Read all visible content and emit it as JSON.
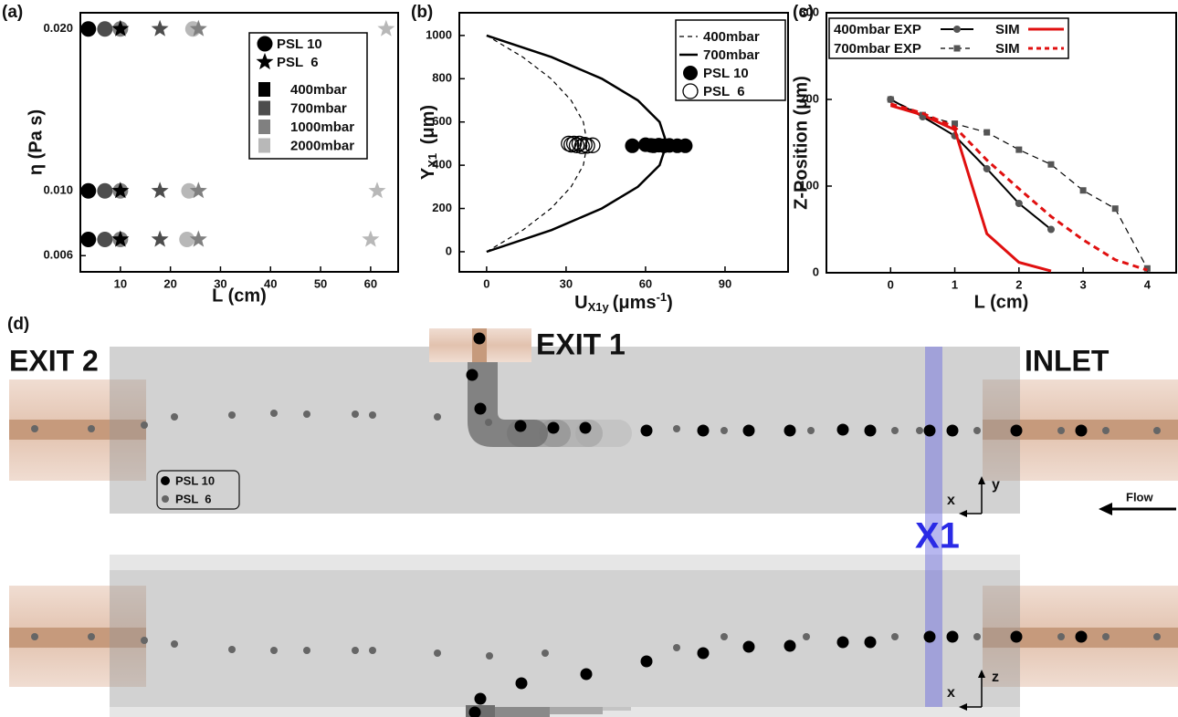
{
  "chart_data": [
    {
      "type": "scatter",
      "panel_label": "(a)",
      "xlabel": "L (cm)",
      "ylabel": "η (Pa s)",
      "xlim": [
        2,
        65.5
      ],
      "xticks": [
        10,
        20,
        30,
        40,
        50,
        60
      ],
      "ylim": [
        0.005,
        0.021
      ],
      "yticks": [
        {
          "value": 0.02,
          "label": "0.020"
        },
        {
          "value": 0.01,
          "label": "0.010"
        },
        0.006
      ],
      "marker_legend": [
        {
          "name": "PSL 10",
          "marker": "circle"
        },
        {
          "name": "PSL  6",
          "marker": "star"
        }
      ],
      "color_legend": [
        {
          "name": "400mbar",
          "color": "#000000"
        },
        {
          "name": "700mbar",
          "color": "#4d4d4d"
        },
        {
          "name": "1000mbar",
          "color": "#808080"
        },
        {
          "name": "2000mbar",
          "color": "#b8b8b8"
        }
      ],
      "series": [
        {
          "marker": "circle",
          "color": "#000000",
          "x": [
            3.6,
            3.6,
            3.6
          ],
          "y": [
            0.02,
            0.01,
            0.007
          ]
        },
        {
          "marker": "circle",
          "color": "#4d4d4d",
          "x": [
            6.9,
            6.9,
            6.9
          ],
          "y": [
            0.02,
            0.01,
            0.007
          ]
        },
        {
          "marker": "circle",
          "color": "#808080",
          "x": [
            10,
            10,
            10
          ],
          "y": [
            0.02,
            0.01,
            0.007
          ]
        },
        {
          "marker": "circle",
          "color": "#b8b8b8",
          "x": [
            24.5,
            23.7,
            23.3
          ],
          "y": [
            0.02,
            0.01,
            0.007
          ]
        },
        {
          "marker": "star",
          "color": "#000000",
          "x": [
            10,
            10,
            10
          ],
          "y": [
            0.02,
            0.01,
            0.007
          ]
        },
        {
          "marker": "star",
          "color": "#4d4d4d",
          "x": [
            17.9,
            17.9,
            17.9
          ],
          "y": [
            0.02,
            0.01,
            0.007
          ]
        },
        {
          "marker": "star",
          "color": "#808080",
          "x": [
            25.6,
            25.6,
            25.6
          ],
          "y": [
            0.02,
            0.01,
            0.007
          ]
        },
        {
          "marker": "star",
          "color": "#b8b8b8",
          "x": [
            63.1,
            61.3,
            60
          ],
          "y": [
            0.02,
            0.01,
            0.007
          ]
        }
      ]
    },
    {
      "type": "line",
      "panel_label": "(b)",
      "xlabel_parts": [
        "U",
        "X1y",
        "(μms",
        "-1",
        ")"
      ],
      "ylabel_parts": [
        "Y",
        "X1",
        " (μm)"
      ],
      "xlim": [
        -10.3,
        113.8
      ],
      "xticks": [
        0,
        30,
        60,
        90
      ],
      "ylim": [
        -93,
        1105
      ],
      "yticks": [
        0,
        200,
        400,
        600,
        800,
        1000
      ],
      "legend_columns": 1,
      "series": [
        {
          "name": "400mbar",
          "style": "dashed",
          "line_width": 1.2,
          "color": "#000000",
          "x": [
            0,
            13.7,
            24.3,
            31.9,
            36.5,
            38,
            36.5,
            31.9,
            24.3,
            13.7,
            0
          ],
          "y": [
            0,
            100,
            200,
            300,
            400,
            500,
            600,
            700,
            800,
            900,
            1000
          ]
        },
        {
          "name": "700mbar",
          "style": "solid",
          "line_width": 2.5,
          "color": "#000000",
          "x": [
            0,
            24.5,
            43.5,
            57.1,
            65.3,
            68,
            65.3,
            57.1,
            43.5,
            24.5,
            0
          ],
          "y": [
            0,
            100,
            200,
            300,
            400,
            500,
            600,
            700,
            800,
            900,
            1000
          ]
        },
        {
          "name": "PSL 10",
          "marker": "big-filled",
          "color": "#000000",
          "x": [
            55,
            60,
            62,
            63,
            65,
            67,
            69,
            72,
            75
          ],
          "y": [
            490,
            495,
            492,
            490,
            493,
            490,
            492,
            490,
            490
          ]
        },
        {
          "name": "PSL  6",
          "marker": "big-open",
          "color": "#000000",
          "x": [
            31,
            32,
            33,
            34,
            35,
            36,
            37,
            38,
            40
          ],
          "y": [
            500,
            495,
            500,
            492,
            500,
            488,
            495,
            490,
            492
          ]
        }
      ]
    },
    {
      "type": "line",
      "panel_label": "(c)",
      "xlabel": "L (cm)",
      "ylabel": "Z-Position (μm)",
      "xlim": [
        -1,
        4.45
      ],
      "xticks": [
        0,
        1,
        2,
        3,
        4
      ],
      "ylim": [
        0,
        300
      ],
      "yticks": [
        0,
        100,
        200,
        300
      ],
      "legend_columns": 2,
      "series": [
        {
          "name": "400mbar EXP",
          "style": "solid",
          "line_width": 2,
          "color": "#000000",
          "marker": "circle",
          "marker_color": "#555555",
          "x": [
            0,
            0.5,
            1,
            1.5,
            2,
            2.5
          ],
          "y": [
            200,
            180,
            158,
            120,
            80,
            50
          ]
        },
        {
          "name": "SIM",
          "style": "solid",
          "line_width": 3,
          "color": "#e01010",
          "x": [
            0,
            0.5,
            1,
            1.5,
            2,
            2.5
          ],
          "y": [
            193,
            182,
            165,
            45,
            12,
            2
          ]
        },
        {
          "name": "700mbar EXP",
          "style": "dashed",
          "line_width": 1.2,
          "color": "#000000",
          "marker": "square",
          "marker_color": "#555555",
          "x": [
            0,
            0.5,
            1,
            1.5,
            2,
            2.5,
            3,
            3.5,
            4
          ],
          "y": [
            200,
            182,
            172,
            162,
            142,
            125,
            95,
            74,
            5
          ]
        },
        {
          "name": "SIM",
          "style": "dashed",
          "line_width": 3,
          "color": "#e01010",
          "x": [
            0,
            0.5,
            1,
            1.5,
            2,
            2.5,
            3,
            3.5,
            4
          ],
          "y": [
            195,
            184,
            168,
            130,
            97,
            65,
            38,
            15,
            3
          ]
        }
      ]
    }
  ],
  "diagram": {
    "panel_label": "(d)",
    "exit2": "EXIT 2",
    "exit1": "EXIT 1",
    "inlet": "INLET",
    "section": "X1",
    "flow": "Flow",
    "top_axes": {
      "h": "x",
      "v": "y"
    },
    "bottom_axes": {
      "h": "x",
      "v": "z"
    },
    "legend": [
      "PSL 10",
      "PSL  6"
    ]
  }
}
